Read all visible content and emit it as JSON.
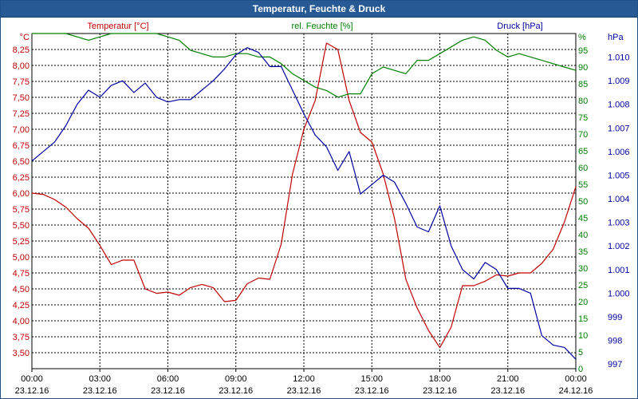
{
  "window_title": "Temperatur, Feuchte & Druck",
  "colors": {
    "temperature": "#c00000",
    "humidity": "#008000",
    "pressure": "#0000a0",
    "grid": "#000000",
    "titlebar": "#275a94"
  },
  "chart_data": {
    "type": "line",
    "title": "Temperatur, Feuchte & Druck",
    "grid": true,
    "x_ticks": [
      {
        "time": "00:00",
        "date": "23.12.16"
      },
      {
        "time": "03:00",
        "date": "23.12.16"
      },
      {
        "time": "06:00",
        "date": "23.12.16"
      },
      {
        "time": "09:00",
        "date": "23.12.16"
      },
      {
        "time": "12:00",
        "date": "23.12.16"
      },
      {
        "time": "15:00",
        "date": "23.12.16"
      },
      {
        "time": "18:00",
        "date": "23.12.16"
      },
      {
        "time": "21:00",
        "date": "23.12.16"
      },
      {
        "time": "00:00",
        "date": "24.12.16"
      }
    ],
    "axes": {
      "temperature": {
        "label": "Temperatur [°C]",
        "unit": "°C",
        "ylim": [
          3.25,
          8.5
        ],
        "ticks": [
          "8,25",
          "8,00",
          "7,75",
          "7,50",
          "7,25",
          "7,00",
          "6,75",
          "6,50",
          "6,25",
          "6,00",
          "5,75",
          "5,50",
          "5,25",
          "5,00",
          "4,75",
          "4,50",
          "4,25",
          "4,00",
          "3,75",
          "3,50"
        ]
      },
      "humidity": {
        "label": "rel. Feuchte [%]",
        "unit": "%",
        "ylim": [
          0,
          100
        ],
        "ticks": [
          "95",
          "90",
          "85",
          "80",
          "75",
          "70",
          "65",
          "60",
          "55",
          "50",
          "45",
          "40",
          "35",
          "30",
          "25",
          "20",
          "15",
          "10",
          "5",
          "0"
        ]
      },
      "pressure": {
        "label": "Druck [hPa]",
        "unit": "hPa",
        "ylim": [
          996.8,
          1011.0
        ],
        "ticks": [
          "1.010",
          "1.009",
          "1.008",
          "1.007",
          "1.006",
          "1.005",
          "1.004",
          "1.003",
          "1.002",
          "1.001",
          "1.000",
          "999",
          "998",
          "997"
        ]
      }
    },
    "series": [
      {
        "name": "Temperatur [°C]",
        "axis": "temperature",
        "x_hours": [
          0,
          0.5,
          1,
          1.5,
          2,
          2.5,
          3,
          3.5,
          4,
          4.5,
          5,
          5.5,
          6,
          6.5,
          7,
          7.5,
          8,
          8.5,
          9,
          9.5,
          10,
          10.5,
          11,
          11.5,
          12,
          12.5,
          13,
          13.5,
          14,
          14.5,
          15,
          15.5,
          16,
          16.5,
          17,
          17.5,
          18,
          18.5,
          19,
          19.5,
          20,
          20.5,
          21,
          21.5,
          22,
          22.5,
          23,
          23.5,
          24
        ],
        "values": [
          6.0,
          5.98,
          5.9,
          5.78,
          5.6,
          5.45,
          5.18,
          4.88,
          4.95,
          4.95,
          4.5,
          4.43,
          4.45,
          4.4,
          4.52,
          4.57,
          4.52,
          4.3,
          4.32,
          4.58,
          4.67,
          4.65,
          5.2,
          6.3,
          7.0,
          7.45,
          8.35,
          8.25,
          7.45,
          6.95,
          6.8,
          6.3,
          5.6,
          4.65,
          4.2,
          3.85,
          3.58,
          3.9,
          4.55,
          4.55,
          4.62,
          4.72,
          4.7,
          4.75,
          4.75,
          4.9,
          5.12,
          5.55,
          6.1
        ]
      },
      {
        "name": "rel. Feuchte [%]",
        "axis": "humidity",
        "x_hours": [
          0,
          0.5,
          1,
          1.5,
          2,
          2.5,
          3,
          3.5,
          4,
          4.5,
          5,
          5.5,
          6,
          6.5,
          7,
          7.5,
          8,
          8.5,
          9,
          9.5,
          10,
          10.5,
          11,
          11.5,
          12,
          12.5,
          13,
          13.5,
          14,
          14.5,
          15,
          15.5,
          16,
          16.5,
          17,
          17.5,
          18,
          18.5,
          19,
          19.5,
          20,
          20.5,
          21,
          21.5,
          22,
          22.5,
          23,
          23.5,
          24
        ],
        "values": [
          100,
          100,
          100,
          100,
          99,
          98,
          99,
          100,
          100,
          100,
          100,
          100,
          99,
          98,
          95,
          94,
          93,
          93,
          94,
          94,
          93,
          93,
          91,
          88,
          86,
          84,
          83,
          81,
          82,
          82,
          88,
          90,
          89,
          88,
          92,
          92,
          94,
          96,
          98,
          99,
          98,
          95,
          93,
          94,
          93,
          92,
          91,
          90,
          89
        ]
      },
      {
        "name": "Druck [hPa]",
        "axis": "pressure",
        "x_hours": [
          0,
          0.5,
          1,
          1.5,
          2,
          2.5,
          3,
          3.5,
          4,
          4.5,
          5,
          5.5,
          6,
          6.5,
          7,
          7.5,
          8,
          8.5,
          9,
          9.5,
          10,
          10.5,
          11,
          11.5,
          12,
          12.5,
          13,
          13.5,
          14,
          14.5,
          15,
          15.5,
          16,
          16.5,
          17,
          17.5,
          18,
          18.5,
          19,
          19.5,
          20,
          20.5,
          21,
          21.5,
          22,
          22.5,
          23,
          23.5,
          24
        ],
        "values": [
          1005.6,
          1006.0,
          1006.4,
          1007.1,
          1008.0,
          1008.6,
          1008.3,
          1008.8,
          1009.0,
          1008.5,
          1008.9,
          1008.3,
          1008.1,
          1008.2,
          1008.2,
          1008.6,
          1009.0,
          1009.5,
          1010.1,
          1010.4,
          1010.2,
          1009.6,
          1009.6,
          1008.6,
          1007.6,
          1006.7,
          1006.2,
          1005.2,
          1006.0,
          1004.2,
          1004.6,
          1005.0,
          1004.7,
          1003.8,
          1002.8,
          1002.6,
          1003.7,
          1002.0,
          1001.0,
          1000.6,
          1001.3,
          1001.0,
          1000.2,
          1000.2,
          1000.0,
          998.2,
          997.8,
          997.7,
          997.2
        ]
      }
    ]
  }
}
